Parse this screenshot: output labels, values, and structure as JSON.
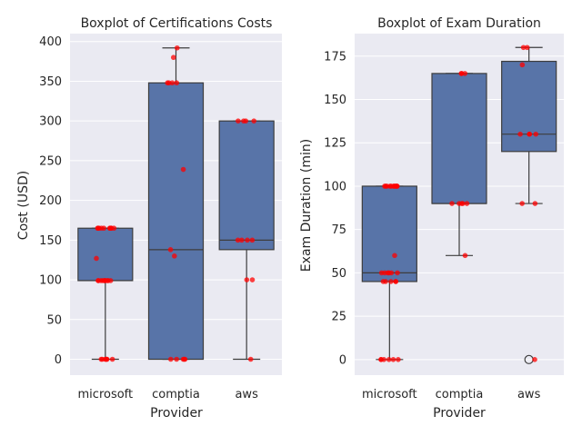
{
  "colors": {
    "box_fill": "#5874a8",
    "point": "#ff0000",
    "outlier_edge": "#3d3d3d",
    "plot_bg": "#eaeaf2"
  },
  "chart_data": [
    {
      "type": "boxplot",
      "title": "Boxplot of Certifications Costs",
      "xlabel": "Provider",
      "ylabel": "Cost (USD)",
      "categories": [
        "microsoft",
        "comptia",
        "aws"
      ],
      "ylim": [
        -20,
        410
      ],
      "yticks": [
        0,
        50,
        100,
        150,
        200,
        250,
        300,
        350,
        400
      ],
      "grid": true,
      "boxes": [
        {
          "category": "microsoft",
          "q1": 99,
          "median": 99,
          "q3": 165,
          "whisker_low": 0,
          "whisker_high": 165
        },
        {
          "category": "comptia",
          "q1": 0,
          "median": 138,
          "q3": 348,
          "whisker_low": 0,
          "whisker_high": 392
        },
        {
          "category": "aws",
          "q1": 138,
          "median": 150,
          "q3": 300,
          "whisker_low": 0,
          "whisker_high": 300
        }
      ],
      "points": [
        {
          "category": "microsoft",
          "values": [
            165,
            165,
            165,
            165,
            165,
            165,
            165,
            165,
            165,
            165,
            127,
            99,
            99,
            99,
            99,
            99,
            99,
            99,
            99,
            99,
            99,
            0,
            0,
            0,
            0,
            0,
            0,
            0
          ]
        },
        {
          "category": "comptia",
          "values": [
            392,
            380,
            348,
            348,
            348,
            348,
            239,
            138,
            130,
            0,
            0,
            0,
            0,
            0
          ]
        },
        {
          "category": "aws",
          "values": [
            300,
            300,
            300,
            300,
            150,
            150,
            150,
            150,
            100,
            100,
            0
          ]
        }
      ]
    },
    {
      "type": "boxplot",
      "title": "Boxplot of Exam Duration",
      "xlabel": "Provider",
      "ylabel": "Exam Duration (min)",
      "categories": [
        "microsoft",
        "comptia",
        "aws"
      ],
      "ylim": [
        -9,
        188
      ],
      "yticks": [
        0,
        25,
        50,
        75,
        100,
        125,
        150,
        175
      ],
      "grid": true,
      "boxes": [
        {
          "category": "microsoft",
          "q1": 45,
          "median": 50,
          "q3": 100,
          "whisker_low": 0,
          "whisker_high": 100
        },
        {
          "category": "comptia",
          "q1": 90,
          "median": 90,
          "q3": 165,
          "whisker_low": 60,
          "whisker_high": 165
        },
        {
          "category": "aws",
          "q1": 120,
          "median": 130,
          "q3": 172,
          "whisker_low": 90,
          "whisker_high": 180
        }
      ],
      "outliers": [
        {
          "category": "aws",
          "values": [
            0
          ]
        }
      ],
      "points": [
        {
          "category": "microsoft",
          "values": [
            100,
            100,
            100,
            100,
            100,
            100,
            100,
            100,
            100,
            100,
            100,
            60,
            50,
            50,
            50,
            50,
            50,
            50,
            45,
            45,
            45,
            45,
            45,
            0,
            0,
            0,
            0,
            0,
            0
          ]
        },
        {
          "category": "comptia",
          "values": [
            165,
            165,
            165,
            90,
            90,
            90,
            90,
            90,
            60
          ]
        },
        {
          "category": "aws",
          "values": [
            180,
            180,
            170,
            130,
            130,
            130,
            130,
            90,
            90,
            0
          ]
        }
      ]
    }
  ]
}
